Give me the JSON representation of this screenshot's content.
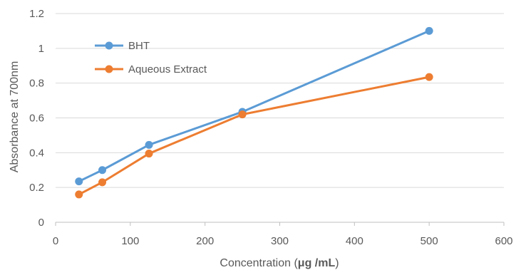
{
  "chart_data": {
    "type": "line",
    "title": "",
    "xlabel": "Concentration (μg /mL)",
    "xlabel_parts": {
      "pre": "Concentration (",
      "bold": "μg /mL",
      "post": ")"
    },
    "ylabel": "Absorbance at 700nm",
    "xlim": [
      0,
      600
    ],
    "ylim": [
      0,
      1.2
    ],
    "x_ticks": [
      0,
      100,
      200,
      300,
      400,
      500,
      600
    ],
    "x_tick_labels": [
      "0",
      "100",
      "200",
      "300",
      "400",
      "500",
      "600"
    ],
    "y_ticks": [
      0,
      0.2,
      0.4,
      0.6,
      0.8,
      1.0,
      1.2
    ],
    "y_tick_labels": [
      "0",
      "0.2",
      "0.4",
      "0.6",
      "0.8",
      "1",
      "1.2"
    ],
    "grid": "horizontal",
    "legend_position": "top-left",
    "series": [
      {
        "name": "BHT",
        "color": "#5B9BD5",
        "x": [
          31.25,
          62.5,
          125,
          250,
          500
        ],
        "y": [
          0.235,
          0.3,
          0.445,
          0.635,
          1.1
        ]
      },
      {
        "name": "Aqueous Extract",
        "color": "#ED7D31",
        "x": [
          31.25,
          62.5,
          125,
          250,
          500
        ],
        "y": [
          0.16,
          0.23,
          0.395,
          0.62,
          0.835
        ]
      }
    ]
  }
}
